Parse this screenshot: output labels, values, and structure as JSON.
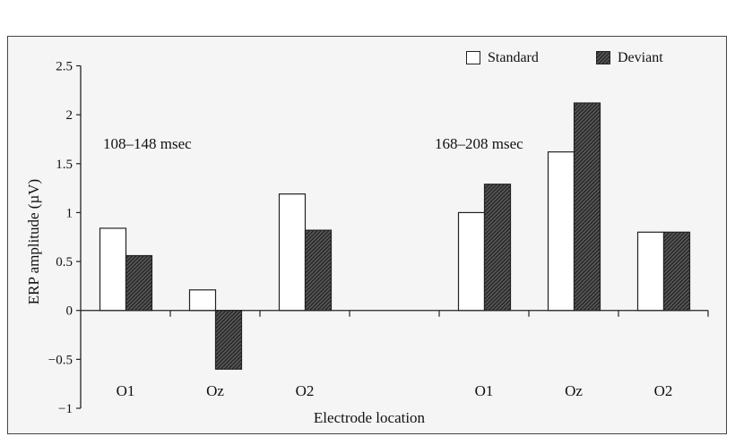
{
  "chart_data": {
    "type": "bar",
    "xlabel": "Electrode location",
    "ylabel": "ERP amplitude (µV)",
    "ylim": [
      -1,
      2.5
    ],
    "yticks": [
      -1,
      -0.5,
      0,
      0.5,
      1,
      1.5,
      2,
      2.5
    ],
    "ytick_labels": [
      "−1",
      "−0.5",
      "0",
      "0.5",
      "1",
      "1.5",
      "2",
      "2.5"
    ],
    "categories": [
      "O1",
      "Oz",
      "O2",
      "",
      "O1",
      "Oz",
      "O2"
    ],
    "series": [
      {
        "name": "Standard",
        "fill": "#ffffff",
        "values": [
          0.84,
          0.21,
          1.19,
          null,
          1.0,
          1.62,
          0.8
        ]
      },
      {
        "name": "Deviant",
        "fill": "hatched-dark",
        "values": [
          0.56,
          -0.6,
          0.82,
          null,
          1.29,
          2.12,
          0.8
        ]
      }
    ],
    "annotations": [
      "108–148 msec",
      "168–208 msec"
    ],
    "legend": "top-right",
    "grid": false,
    "colors": {
      "background": "#f5f5f5",
      "border": "#444444",
      "hatch": "#2a2a2a"
    }
  }
}
